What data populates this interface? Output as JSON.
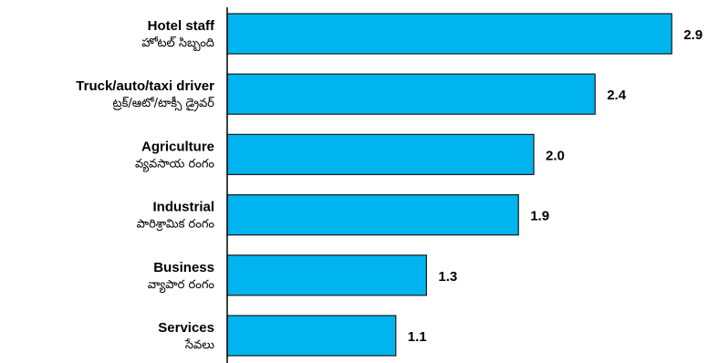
{
  "colors": {
    "bar_fill": "#00b5ef",
    "bar_stroke": "#1a1a1a",
    "axis": "#000000",
    "text": "#000000"
  },
  "chart_data": {
    "type": "bar",
    "orientation": "horizontal",
    "title": "",
    "xlabel": "",
    "ylabel": "",
    "xlim": [
      0,
      3.0
    ],
    "grid": false,
    "legend": "none",
    "categories": [
      "Hotel staff",
      "Truck/auto/taxi driver",
      "Agriculture",
      "Industrial",
      "Business",
      "Services"
    ],
    "categories_telugu": [
      "హోటల్ సిబ్బంది",
      "ట్రక్/ఆటో/టాక్సీ డ్రైవర్",
      "వ్యవసాయ రంగం",
      "పారిశ్రామిక రంగం",
      "వ్యాపార రంగం",
      "సేవలు"
    ],
    "values": [
      2.9,
      2.4,
      2.0,
      1.9,
      1.3,
      1.1
    ],
    "value_labels": [
      "2.9",
      "2.4",
      "2.0",
      "1.9",
      "1.3",
      "1.1"
    ]
  }
}
